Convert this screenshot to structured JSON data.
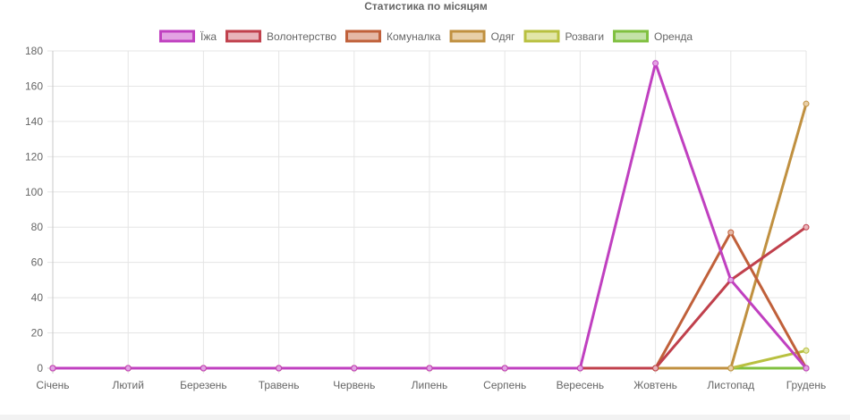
{
  "chart_data": {
    "type": "line",
    "title": "Статистика по місяцям",
    "categories": [
      "Січень",
      "Лютий",
      "Березень",
      "Травень",
      "Червень",
      "Липень",
      "Серпень",
      "Вересень",
      "Жовтень",
      "Листопад",
      "Грудень"
    ],
    "ylim": [
      0,
      180
    ],
    "yticks": [
      0,
      20,
      40,
      60,
      80,
      100,
      120,
      140,
      160,
      180
    ],
    "grid": true,
    "legend_position": "top",
    "series": [
      {
        "name": "Їжа",
        "color": "#c040c0",
        "fill": "#e3a3e3",
        "values": [
          0,
          0,
          0,
          0,
          0,
          0,
          0,
          0,
          173,
          50,
          0
        ]
      },
      {
        "name": "Волонтерство",
        "color": "#c0404c",
        "fill": "#e8b4ba",
        "values": [
          0,
          0,
          0,
          0,
          0,
          0,
          0,
          0,
          0,
          50,
          80
        ]
      },
      {
        "name": "Комуналка",
        "color": "#c0603a",
        "fill": "#e5b8a6",
        "values": [
          0,
          0,
          0,
          0,
          0,
          0,
          0,
          0,
          0,
          77,
          0
        ]
      },
      {
        "name": "Одяг",
        "color": "#c09040",
        "fill": "#e8cfa8",
        "values": [
          0,
          0,
          0,
          0,
          0,
          0,
          0,
          0,
          0,
          0,
          150
        ]
      },
      {
        "name": "Розваги",
        "color": "#b8c040",
        "fill": "#e2e6a8",
        "values": [
          0,
          0,
          0,
          0,
          0,
          0,
          0,
          0,
          0,
          0,
          10
        ]
      },
      {
        "name": "Оренда",
        "color": "#80c040",
        "fill": "#c4e2a8",
        "values": [
          0,
          0,
          0,
          0,
          0,
          0,
          0,
          0,
          0,
          0,
          0
        ]
      }
    ]
  }
}
